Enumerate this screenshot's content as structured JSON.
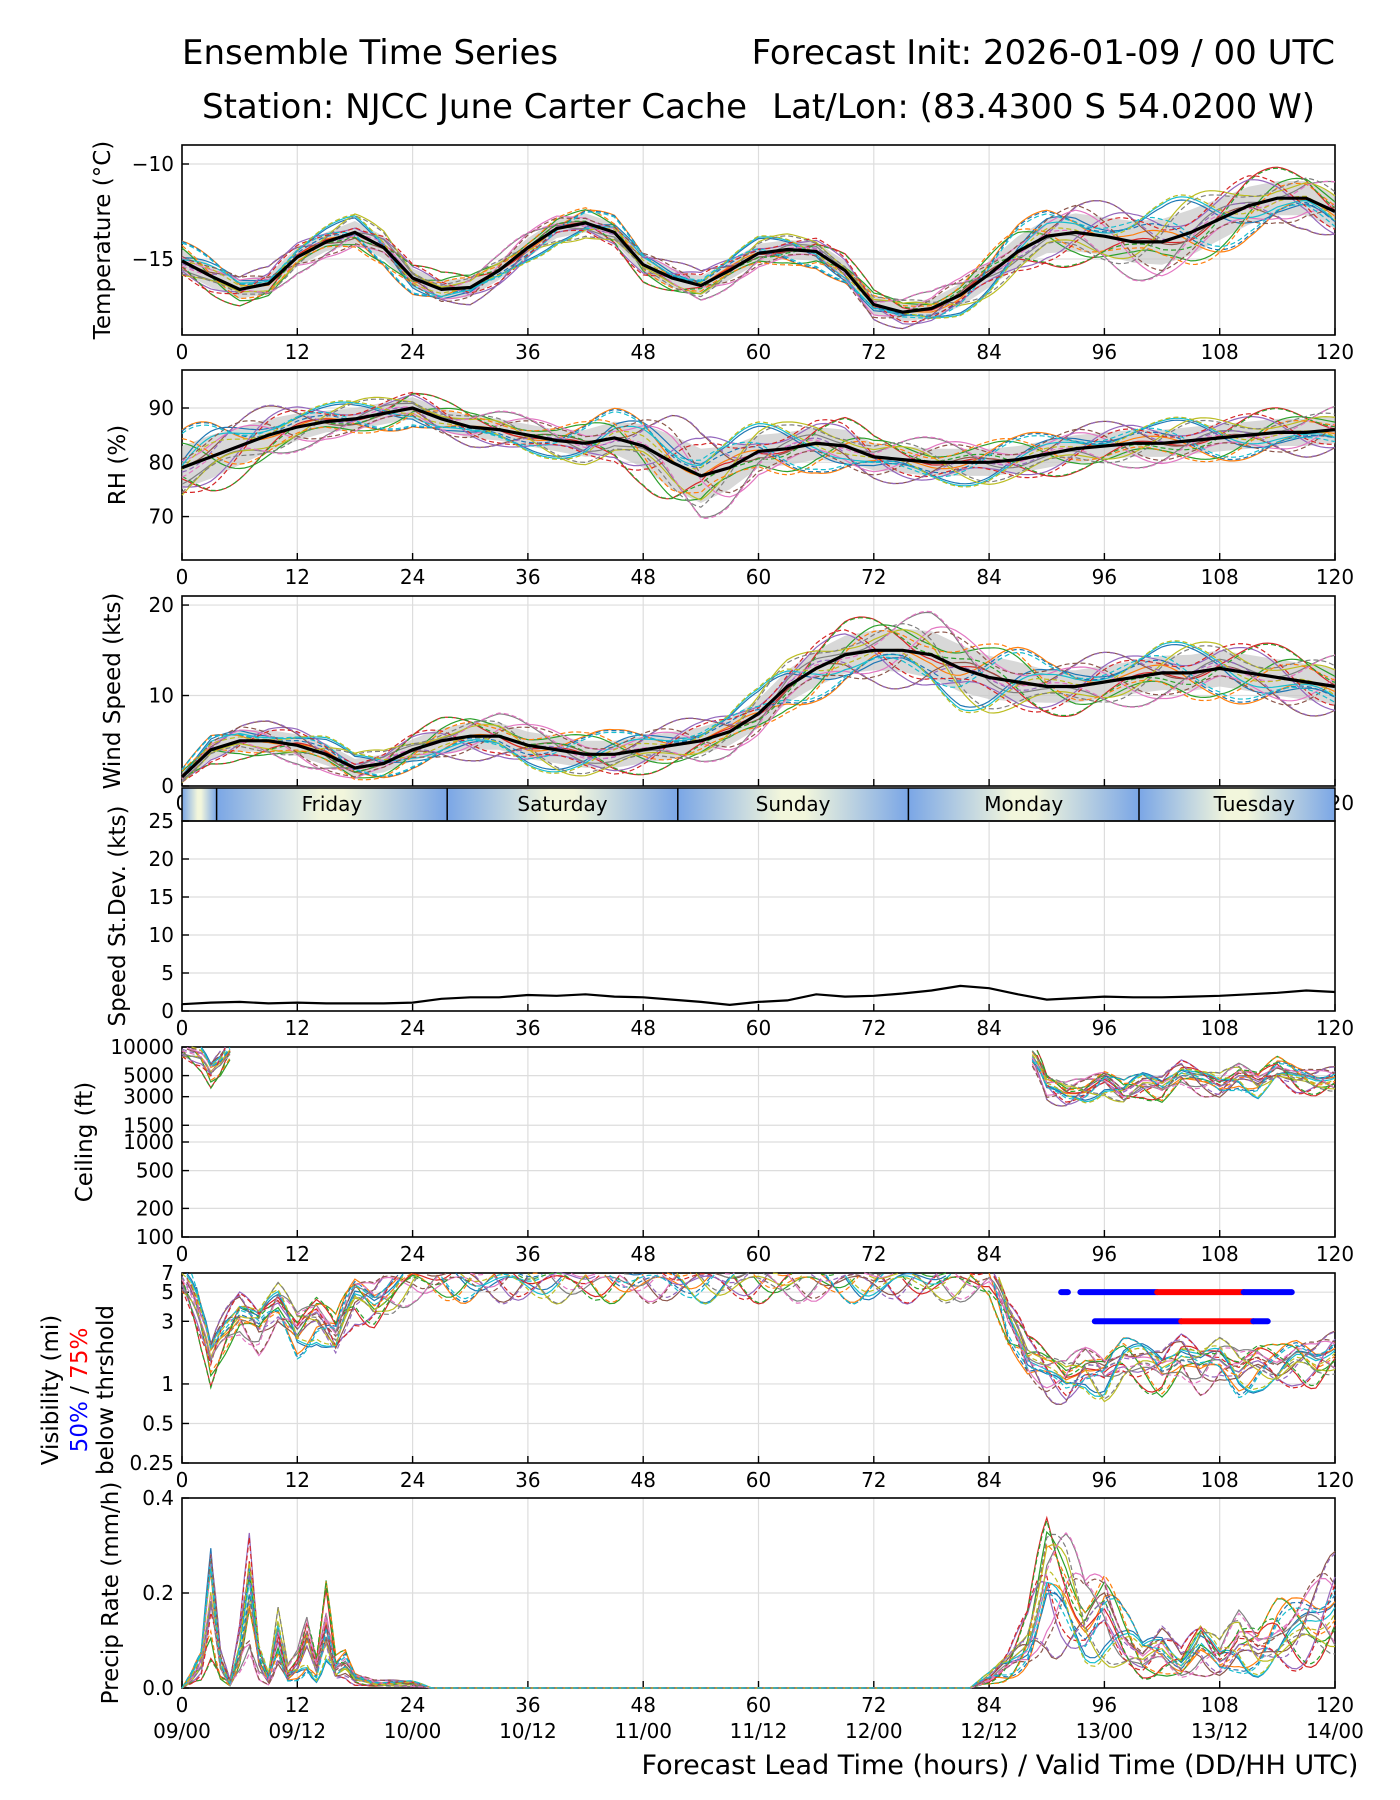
{
  "titles": {
    "left_line1": "Ensemble Time Series",
    "left_line2": "Station: NJCC June Carter Cache",
    "right_line1": "Forecast Init: 2026-01-09 / 00 UTC",
    "right_line2": "Lat/Lon: (83.4300 S 54.0200 W)"
  },
  "x_axis": {
    "lead_ticks": [
      "0",
      "12",
      "24",
      "36",
      "48",
      "60",
      "72",
      "84",
      "96",
      "108",
      "120"
    ],
    "valid_ticks": [
      "09/00",
      "09/12",
      "10/00",
      "10/12",
      "11/00",
      "11/12",
      "12/00",
      "12/12",
      "13/00",
      "13/12",
      "14/00"
    ],
    "label": "Forecast Lead Time (hours) / Valid Time (DD/HH UTC)"
  },
  "day_band": {
    "days": [
      "Friday",
      "Saturday",
      "Sunday",
      "Monday",
      "Tuesday"
    ]
  },
  "vis_label": {
    "line1": "Visibility (mi)",
    "p50": "50%",
    "sep": " / ",
    "p75": "75%",
    "line3": "below thrshold"
  },
  "colors": {
    "mean": "#000000",
    "spread": "#c8c8c8",
    "p50": "#0000ff",
    "p75": "#ff0000",
    "grid": "#dddddd"
  },
  "chart_data": [
    {
      "type": "line",
      "id": "temperature",
      "ylabel": "Temperature (°C)",
      "ylim": [
        -19,
        -9
      ],
      "yticks": [
        -15,
        -10
      ],
      "ytick_labels": [
        "−15",
        "−10"
      ],
      "x": [
        0,
        3,
        6,
        9,
        12,
        15,
        18,
        21,
        24,
        27,
        30,
        33,
        36,
        39,
        42,
        45,
        48,
        51,
        54,
        57,
        60,
        63,
        66,
        69,
        72,
        75,
        78,
        81,
        84,
        87,
        90,
        93,
        96,
        99,
        102,
        105,
        108,
        111,
        114,
        117,
        120
      ],
      "mean": [
        -15.1,
        -15.9,
        -16.6,
        -16.3,
        -14.9,
        -14.1,
        -13.6,
        -14.4,
        -16.0,
        -16.6,
        -16.5,
        -15.6,
        -14.4,
        -13.4,
        -13.1,
        -13.6,
        -15.3,
        -16.0,
        -16.4,
        -15.6,
        -14.7,
        -14.5,
        -14.6,
        -15.6,
        -17.4,
        -17.8,
        -17.6,
        -16.9,
        -15.8,
        -14.6,
        -13.8,
        -13.6,
        -13.8,
        -14.1,
        -14.1,
        -13.6,
        -12.9,
        -12.2,
        -11.8,
        -11.8,
        -12.5
      ],
      "spread": [
        0.6,
        0.6,
        0.5,
        0.5,
        0.5,
        0.5,
        0.6,
        0.6,
        0.5,
        0.5,
        0.5,
        0.5,
        0.5,
        0.5,
        0.5,
        0.5,
        0.5,
        0.5,
        0.5,
        0.5,
        0.5,
        0.5,
        0.5,
        0.5,
        0.5,
        0.5,
        0.5,
        0.6,
        0.7,
        0.8,
        0.9,
        1.0,
        1.0,
        1.1,
        1.2,
        1.2,
        1.1,
        1.0,
        0.9,
        0.9,
        0.9
      ]
    },
    {
      "type": "line",
      "id": "rh",
      "ylabel": "RH (%)",
      "ylim": [
        62,
        97
      ],
      "yticks": [
        70,
        80,
        90
      ],
      "ytick_labels": [
        "70",
        "80",
        "90"
      ],
      "x": [
        0,
        3,
        6,
        9,
        12,
        15,
        18,
        21,
        24,
        27,
        30,
        33,
        36,
        39,
        42,
        45,
        48,
        51,
        54,
        57,
        60,
        63,
        66,
        69,
        72,
        75,
        78,
        81,
        84,
        87,
        90,
        93,
        96,
        99,
        102,
        105,
        108,
        111,
        114,
        117,
        120
      ],
      "mean": [
        79,
        81,
        83,
        85,
        86.5,
        87.5,
        88,
        89,
        90,
        88,
        86.5,
        86,
        85,
        84,
        83.5,
        84.5,
        83,
        80,
        77.5,
        79,
        82,
        82.5,
        83.5,
        83,
        81,
        80.5,
        80,
        80,
        80,
        80.5,
        81.5,
        82.5,
        83,
        83.5,
        83.5,
        84,
        84.5,
        85,
        85.5,
        85.5,
        86
      ],
      "spread": [
        4,
        4,
        3.5,
        3,
        2.5,
        2,
        2,
        2,
        2,
        2,
        2,
        2,
        2,
        2,
        2.5,
        3,
        4,
        5,
        5,
        4,
        3,
        3,
        3,
        3,
        2.5,
        2.5,
        2.5,
        2.5,
        2.5,
        2.5,
        2.5,
        2.5,
        2.5,
        2.5,
        2.5,
        2.5,
        2.5,
        2.5,
        2.5,
        2.5,
        2.5
      ]
    },
    {
      "type": "line",
      "id": "wind_speed",
      "ylabel": "Wind Speed (kts)",
      "ylim": [
        0,
        21
      ],
      "yticks": [
        0,
        10,
        20
      ],
      "ytick_labels": [
        "0",
        "10",
        "20"
      ],
      "x": [
        0,
        3,
        6,
        9,
        12,
        15,
        18,
        21,
        24,
        27,
        30,
        33,
        36,
        39,
        42,
        45,
        48,
        51,
        54,
        57,
        60,
        63,
        66,
        69,
        72,
        75,
        78,
        81,
        84,
        87,
        90,
        93,
        96,
        99,
        102,
        105,
        108,
        111,
        114,
        117,
        120
      ],
      "mean": [
        1,
        4,
        5,
        5,
        4.5,
        3.5,
        2,
        2.5,
        4,
        5,
        5.5,
        5.5,
        4.5,
        4,
        3.5,
        3.5,
        4,
        4.5,
        5,
        6,
        8,
        11,
        13,
        14.5,
        15,
        15,
        14.5,
        13,
        12,
        11.5,
        11,
        11,
        11.5,
        12,
        12.5,
        12.5,
        13,
        12.5,
        12,
        11.5,
        11
      ],
      "spread": [
        0.5,
        1,
        1.2,
        1.2,
        1.2,
        1.2,
        1,
        1,
        1.2,
        1.4,
        1.5,
        1.5,
        1.5,
        1.5,
        1.5,
        1.5,
        1.5,
        1.5,
        1.5,
        1.5,
        1.6,
        1.8,
        2,
        2.1,
        2.2,
        2.4,
        2.6,
        2.6,
        2.4,
        2.2,
        1.8,
        1.8,
        1.8,
        1.8,
        1.9,
        2,
        2,
        2,
        2,
        2,
        2
      ]
    },
    {
      "type": "line",
      "id": "speed_stdev",
      "ylabel": "Speed St.Dev. (kts)",
      "ylim": [
        0,
        25
      ],
      "yticks": [
        0,
        5,
        10,
        15,
        20,
        25
      ],
      "ytick_labels": [
        "0",
        "5",
        "10",
        "15",
        "20",
        "25"
      ],
      "x": [
        0,
        3,
        6,
        9,
        12,
        15,
        18,
        21,
        24,
        27,
        30,
        33,
        36,
        39,
        42,
        45,
        48,
        51,
        54,
        57,
        60,
        63,
        66,
        69,
        72,
        75,
        78,
        81,
        84,
        87,
        90,
        93,
        96,
        99,
        102,
        105,
        108,
        111,
        114,
        117,
        120
      ],
      "values": [
        0.9,
        1.1,
        1.2,
        1.0,
        1.1,
        1.0,
        1.0,
        1.0,
        1.1,
        1.6,
        1.8,
        1.8,
        2.1,
        2.0,
        2.2,
        1.9,
        1.8,
        1.5,
        1.2,
        0.8,
        1.2,
        1.4,
        2.2,
        1.9,
        2.0,
        2.3,
        2.7,
        3.3,
        3.0,
        2.2,
        1.5,
        1.7,
        1.9,
        1.8,
        1.8,
        1.9,
        2.0,
        2.2,
        2.4,
        2.7,
        2.5
      ]
    },
    {
      "type": "line",
      "id": "ceiling",
      "ylabel": "Ceiling (ft)",
      "scale": "log",
      "ylim": [
        100,
        10000
      ],
      "yticks": [
        100,
        200,
        500,
        1000,
        1500,
        3000,
        5000,
        10000
      ],
      "ytick_labels": [
        "100",
        "200",
        "500",
        "1000",
        "1500",
        "3000",
        "5000",
        "10000"
      ],
      "x": [
        0,
        2,
        3,
        4,
        5,
        6,
        7,
        88,
        90,
        92,
        94,
        96,
        98,
        100,
        102,
        104,
        106,
        108,
        110,
        112,
        114,
        116,
        118,
        120
      ],
      "values": [
        10000,
        8000,
        5500,
        7000,
        10000,
        null,
        null,
        10000,
        4000,
        3300,
        3600,
        4500,
        3400,
        4200,
        3800,
        5500,
        4600,
        4000,
        5200,
        4300,
        6000,
        4800,
        4400,
        4700
      ]
    },
    {
      "type": "line",
      "id": "visibility",
      "ylabel": "Visibility (mi) 50% / 75% below thrshold",
      "scale": "log",
      "ylim": [
        0.25,
        7
      ],
      "yticks": [
        0.25,
        0.5,
        1,
        3,
        5,
        7
      ],
      "ytick_labels": [
        "0.25",
        "0.5",
        "1",
        "3",
        "5",
        "7"
      ],
      "x": [
        0,
        2,
        3,
        4,
        6,
        8,
        10,
        12,
        14,
        16,
        18,
        20,
        22,
        24,
        84,
        86,
        88,
        90,
        92,
        94,
        96,
        98,
        100,
        102,
        104,
        106,
        108,
        110,
        112,
        114,
        116,
        118,
        120
      ],
      "values": [
        7,
        3,
        1.6,
        2.3,
        3.6,
        2.8,
        4.2,
        2.6,
        3.4,
        2.4,
        4.8,
        4.2,
        5.5,
        7,
        7,
        3.2,
        1.7,
        1.3,
        1.1,
        1.4,
        1.2,
        1.6,
        1.5,
        1.3,
        1.7,
        1.4,
        1.6,
        1.3,
        1.5,
        1.4,
        1.6,
        1.5,
        1.8
      ],
      "threshold_bars": [
        {
          "threshold": 5,
          "p50_x": [
            91.5,
            92.2
          ],
          "p50b_x": [
            93.5,
            101.5
          ],
          "p75_x": [
            101.5,
            110.5
          ],
          "p50c_x": [
            110.5,
            115.5
          ]
        },
        {
          "threshold": 3,
          "p50_x": [
            95,
            104
          ],
          "p75_x": [
            104,
            111.5
          ],
          "p50c_x": [
            111.5,
            113
          ]
        }
      ]
    },
    {
      "type": "line",
      "id": "precip_rate",
      "ylabel": "Precip Rate (mm/h)",
      "ylim": [
        0,
        0.4
      ],
      "yticks": [
        0,
        0.2,
        0.4
      ],
      "ytick_labels": [
        "0.0",
        "0.2",
        "0.4"
      ],
      "x": [
        0,
        1,
        2,
        3,
        4,
        5,
        6,
        7,
        8,
        9,
        10,
        11,
        12,
        13,
        14,
        15,
        16,
        17,
        18,
        20,
        22,
        24,
        26,
        80,
        82,
        84,
        86,
        88,
        90,
        92,
        94,
        96,
        98,
        100,
        102,
        104,
        106,
        108,
        110,
        112,
        114,
        116,
        118,
        120
      ],
      "values": [
        0,
        0.02,
        0.05,
        0.2,
        0.05,
        0.01,
        0.08,
        0.2,
        0.06,
        0.02,
        0.1,
        0.03,
        0.05,
        0.1,
        0.04,
        0.14,
        0.04,
        0.05,
        0.02,
        0.01,
        0.01,
        0.01,
        0,
        0,
        0,
        0.02,
        0.05,
        0.1,
        0.23,
        0.2,
        0.14,
        0.16,
        0.1,
        0.06,
        0.08,
        0.05,
        0.09,
        0.06,
        0.1,
        0.08,
        0.11,
        0.12,
        0.14,
        0.17
      ]
    }
  ]
}
